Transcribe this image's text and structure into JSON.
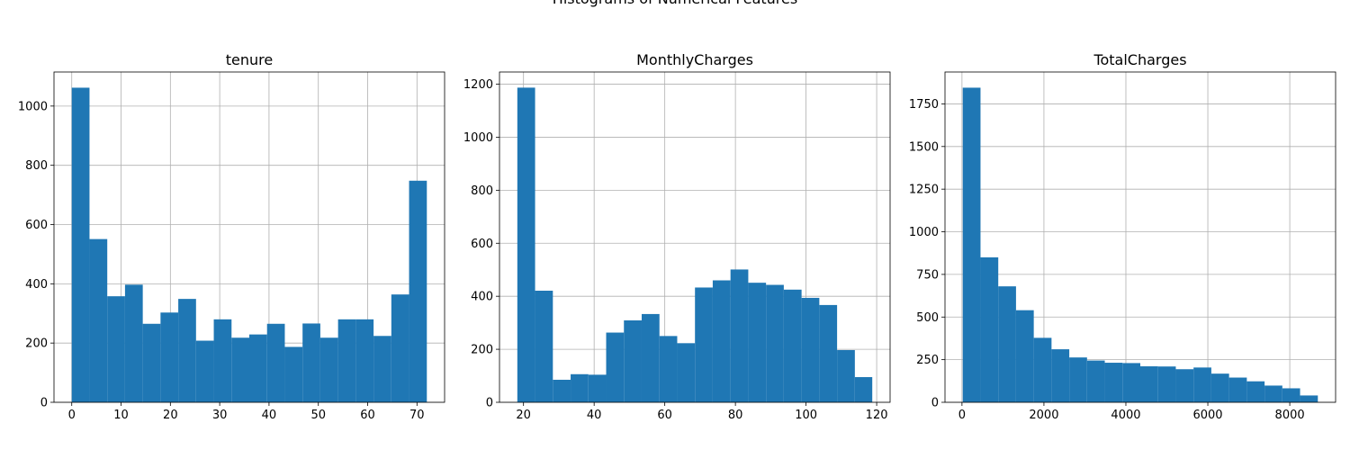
{
  "figure_title": "Histograms of Numerical Features",
  "colors": {
    "bar": "#1f77b4",
    "grid": "#b0b0b0",
    "axis": "#000000"
  },
  "chart_data": [
    {
      "type": "bar",
      "title": "tenure",
      "grid": true,
      "bin_edges": [
        0,
        3.6,
        7.2,
        10.8,
        14.4,
        18,
        21.6,
        25.2,
        28.8,
        32.4,
        36,
        39.6,
        43.2,
        46.8,
        50.4,
        54,
        57.6,
        61.2,
        64.8,
        68.4,
        72
      ],
      "values": [
        1062,
        551,
        358,
        397,
        265,
        303,
        349,
        208,
        280,
        218,
        229,
        265,
        187,
        266,
        218,
        280,
        280,
        224,
        364,
        748
      ],
      "xlim": [
        -3.6,
        75.6
      ],
      "ylim": [
        0,
        1115
      ],
      "xticks": [
        0,
        10,
        20,
        30,
        40,
        50,
        60,
        70
      ],
      "yticks": [
        0,
        200,
        400,
        600,
        800,
        1000
      ]
    },
    {
      "type": "bar",
      "title": "MonthlyCharges",
      "grid": true,
      "bin_edges": [
        18.25,
        23.28,
        28.31,
        33.34,
        38.37,
        43.4,
        48.43,
        53.46,
        58.49,
        63.52,
        68.55,
        73.58,
        78.61,
        83.64,
        88.67,
        93.7,
        98.73,
        103.76,
        108.79,
        113.82,
        118.75
      ],
      "values": [
        1187,
        421,
        85,
        106,
        104,
        263,
        309,
        333,
        250,
        223,
        433,
        460,
        501,
        451,
        443,
        425,
        394,
        367,
        197,
        95
      ],
      "xlim": [
        13.2,
        123.8
      ],
      "ylim": [
        0,
        1246
      ],
      "xticks": [
        20,
        40,
        60,
        80,
        100,
        120
      ],
      "yticks": [
        0,
        200,
        400,
        600,
        800,
        1000,
        1200
      ]
    },
    {
      "type": "bar",
      "title": "TotalCharges",
      "grid": true,
      "bin_edges": [
        18.8,
        452.1,
        885.4,
        1318.7,
        1752,
        2185.3,
        2618.6,
        3051.9,
        3485.2,
        3918.5,
        4351.8,
        4785.1,
        5218.4,
        5651.7,
        6085,
        6518.3,
        6951.6,
        7384.9,
        7818.2,
        8251.5,
        8684.8
      ],
      "values": [
        1845,
        850,
        680,
        540,
        378,
        311,
        263,
        245,
        232,
        230,
        211,
        210,
        194,
        204,
        168,
        145,
        123,
        98,
        82,
        40
      ],
      "xlim": [
        -414.5,
        9118.1
      ],
      "ylim": [
        0,
        1937
      ],
      "xticks": [
        0,
        2000,
        4000,
        6000,
        8000
      ],
      "yticks": [
        0,
        250,
        500,
        750,
        1000,
        1250,
        1500,
        1750
      ]
    }
  ]
}
